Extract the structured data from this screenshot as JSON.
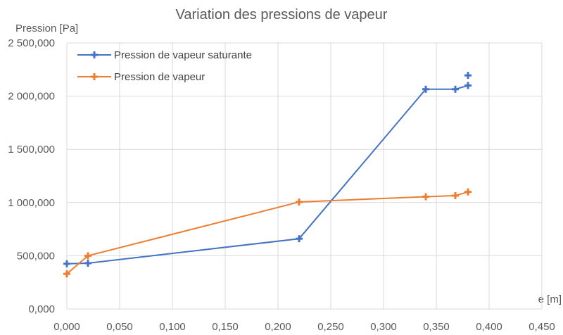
{
  "chart_data": {
    "type": "line",
    "title": "Variation des pressions de vapeur",
    "xlabel": "e [m]",
    "ylabel": "Pression [Pa]",
    "xlim": [
      0,
      0.45
    ],
    "ylim": [
      0,
      2500000
    ],
    "x_ticks": [
      0,
      0.05,
      0.1,
      0.15,
      0.2,
      0.25,
      0.3,
      0.35,
      0.4,
      0.45
    ],
    "x_tick_labels": [
      "0,000",
      "0,050",
      "0,100",
      "0,150",
      "0,200",
      "0,250",
      "0,300",
      "0,350",
      "0,400",
      "0,450"
    ],
    "y_ticks": [
      0,
      500000,
      1000000,
      1500000,
      2000000,
      2500000
    ],
    "y_tick_labels": [
      "0,000",
      "500,000",
      "1 000,000",
      "1 500,000",
      "2 000,000",
      "2 500,000"
    ],
    "grid": true,
    "legend_position": "top-left",
    "series": [
      {
        "name": "Pression de vapeur saturante",
        "color": "#4472C4",
        "x": [
          0,
          0.02,
          0.22,
          0.34,
          0.368,
          0.38
        ],
        "y": [
          425000,
          430000,
          660000,
          2065000,
          2065000,
          2100000
        ],
        "extra_markers": [
          {
            "x": 0.38,
            "y": 2195000
          }
        ]
      },
      {
        "name": "Pression de vapeur",
        "color": "#ED7D31",
        "x": [
          0,
          0.02,
          0.22,
          0.34,
          0.368,
          0.38
        ],
        "y": [
          330000,
          500000,
          1005000,
          1055000,
          1065000,
          1100000
        ],
        "extra_markers": []
      }
    ]
  }
}
